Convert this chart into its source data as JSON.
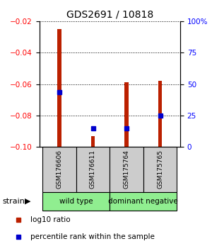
{
  "title": "GDS2691 / 10818",
  "samples": [
    "GSM176606",
    "GSM176611",
    "GSM175764",
    "GSM175765"
  ],
  "bar_tops": [
    -0.025,
    -0.093,
    -0.059,
    -0.058
  ],
  "bar_baseline": -0.1,
  "blue_values": [
    -0.065,
    -0.088,
    -0.088,
    -0.08
  ],
  "ylim_left": [
    -0.1,
    -0.02
  ],
  "ylim_right": [
    0,
    100
  ],
  "yticks_left": [
    -0.1,
    -0.08,
    -0.06,
    -0.04,
    -0.02
  ],
  "yticks_right": [
    0,
    25,
    50,
    75,
    100
  ],
  "ytick_labels_right": [
    "0",
    "25",
    "50",
    "75",
    "100%"
  ],
  "bar_color": "#bb2000",
  "blue_color": "#0000cc",
  "strain_label": "strain",
  "legend_red": "log10 ratio",
  "legend_blue": "percentile rank within the sample",
  "label_box_color": "#cccccc",
  "group_color": "#90ee90",
  "bar_width": 0.12
}
